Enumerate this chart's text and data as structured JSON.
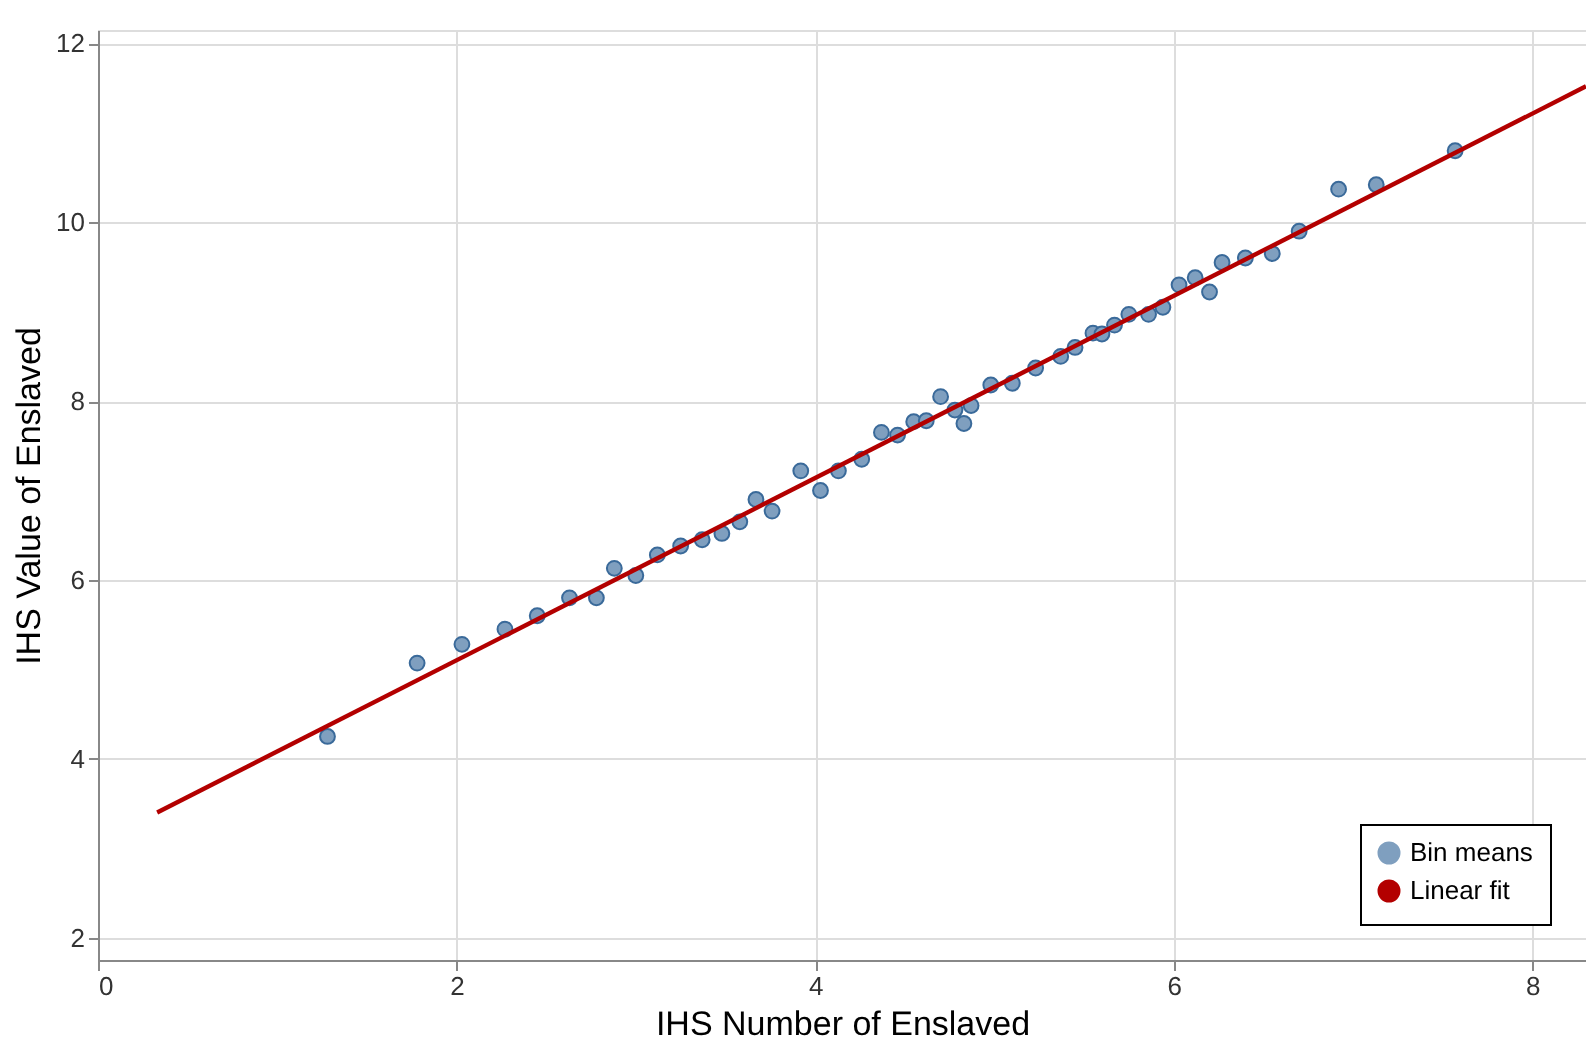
{
  "chart_data": {
    "type": "scatter",
    "xlabel": "IHS Number of Enslaved",
    "ylabel": "IHS Value of Enslaved",
    "xlim": [
      0,
      8.3
    ],
    "ylim": [
      1.75,
      12.15
    ],
    "xticks": [
      0,
      2,
      4,
      6,
      8
    ],
    "yticks": [
      2,
      4,
      6,
      8,
      10,
      12
    ],
    "grid": true,
    "legend": "bottom right",
    "series": [
      {
        "name": "Bin means",
        "type": "scatter",
        "marker": "circle",
        "color": "#7f9fbf",
        "x": [
          1.28,
          1.78,
          2.03,
          2.27,
          2.45,
          2.63,
          2.78,
          2.88,
          3.0,
          3.12,
          3.25,
          3.37,
          3.48,
          3.58,
          3.67,
          3.76,
          3.92,
          4.03,
          4.13,
          4.26,
          4.37,
          4.46,
          4.55,
          4.62,
          4.7,
          4.78,
          4.83,
          4.87,
          4.98,
          5.1,
          5.23,
          5.37,
          5.45,
          5.55,
          5.6,
          5.67,
          5.75,
          5.86,
          5.94,
          6.03,
          6.12,
          6.2,
          6.27,
          6.4,
          6.55,
          6.7,
          6.92,
          7.13,
          7.57
        ],
        "values": [
          4.25,
          5.07,
          5.28,
          5.45,
          5.6,
          5.8,
          5.8,
          6.13,
          6.05,
          6.28,
          6.38,
          6.45,
          6.52,
          6.65,
          6.9,
          6.77,
          7.22,
          7.0,
          7.22,
          7.35,
          7.65,
          7.62,
          7.77,
          7.78,
          8.05,
          7.9,
          7.75,
          7.95,
          8.18,
          8.2,
          8.37,
          8.5,
          8.6,
          8.76,
          8.75,
          8.85,
          8.97,
          8.97,
          9.05,
          9.3,
          9.38,
          9.22,
          9.55,
          9.6,
          9.65,
          9.9,
          10.37,
          10.42,
          10.8
        ]
      },
      {
        "name": "Linear fit",
        "type": "line",
        "color": "#b30000",
        "x": [
          0.33,
          8.3
        ],
        "values": [
          3.4,
          11.52
        ]
      }
    ]
  }
}
